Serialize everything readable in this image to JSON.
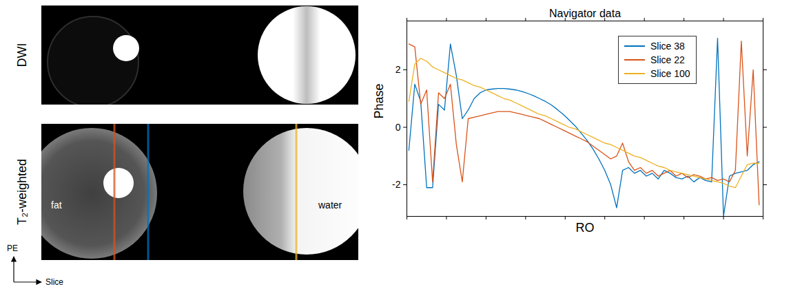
{
  "chart_data": {
    "type": "line",
    "title": "Navigator data",
    "x_label": "RO",
    "y_label": "Phase",
    "x": [
      1,
      4,
      7,
      10,
      13,
      16,
      19,
      22,
      25,
      28,
      31,
      34,
      37,
      40,
      43,
      46,
      49,
      52,
      55,
      58,
      61,
      64,
      67,
      70,
      73,
      76,
      79,
      82,
      85,
      88,
      91,
      94,
      97,
      100,
      103,
      106,
      109,
      112,
      115,
      118,
      121,
      124,
      127,
      130,
      133,
      136,
      139,
      142,
      145,
      148,
      151,
      154,
      157,
      160,
      163,
      166,
      169,
      172,
      175,
      178
    ],
    "series": [
      {
        "name": "Slice 38",
        "color": "#0072bd",
        "values": [
          -0.8,
          1.5,
          0.9,
          -2.1,
          -2.1,
          0.8,
          0.6,
          2.9,
          1.8,
          0.3,
          0.6,
          1.0,
          1.2,
          1.3,
          1.33,
          1.35,
          1.35,
          1.33,
          1.3,
          1.25,
          1.18,
          1.1,
          1.0,
          0.9,
          0.78,
          0.62,
          0.45,
          0.25,
          0.05,
          -0.2,
          -0.45,
          -0.75,
          -1.1,
          -1.5,
          -2.0,
          -2.8,
          -1.5,
          -1.4,
          -1.6,
          -1.5,
          -1.7,
          -1.6,
          -1.8,
          -1.5,
          -1.6,
          -1.75,
          -1.8,
          -1.7,
          -1.9,
          -1.75,
          -1.85,
          -1.9,
          3.1,
          -3.1,
          -1.7,
          -1.6,
          -1.55,
          -1.5,
          -1.3,
          -1.2
        ]
      },
      {
        "name": "Slice 22",
        "color": "#d95319",
        "values": [
          2.9,
          2.8,
          0.8,
          1.3,
          -1.9,
          1.2,
          1.0,
          1.5,
          -0.6,
          -1.9,
          0.3,
          0.35,
          0.4,
          0.45,
          0.5,
          0.55,
          0.55,
          0.55,
          0.5,
          0.45,
          0.4,
          0.35,
          0.3,
          0.2,
          0.1,
          0.0,
          -0.1,
          -0.2,
          -0.3,
          -0.4,
          -0.5,
          -0.65,
          -0.8,
          -0.95,
          -1.1,
          -1.0,
          -0.55,
          -1.2,
          -1.5,
          -1.4,
          -1.6,
          -1.5,
          -1.7,
          -1.6,
          -1.5,
          -1.7,
          -1.6,
          -1.75,
          -1.65,
          -1.7,
          -1.8,
          -1.75,
          -1.85,
          -1.8,
          -1.9,
          -1.5,
          3.0,
          -1.0,
          2.0,
          -2.7
        ]
      },
      {
        "name": "Slice 100",
        "color": "#edb120",
        "values": [
          0.9,
          2.2,
          2.4,
          2.3,
          2.1,
          2.0,
          1.9,
          1.8,
          1.7,
          1.65,
          1.55,
          1.45,
          1.4,
          1.3,
          1.2,
          1.1,
          1.0,
          0.95,
          0.85,
          0.75,
          0.65,
          0.55,
          0.45,
          0.4,
          0.3,
          0.2,
          0.1,
          0.0,
          -0.05,
          -0.15,
          -0.25,
          -0.35,
          -0.45,
          -0.55,
          -0.6,
          -0.7,
          -0.8,
          -0.9,
          -1.0,
          -1.05,
          -1.15,
          -1.25,
          -1.35,
          -1.4,
          -1.5,
          -1.55,
          -1.6,
          -1.65,
          -1.7,
          -1.75,
          -1.8,
          -1.85,
          -1.9,
          -1.95,
          -2.05,
          -2.1,
          -1.7,
          -1.3,
          -1.25,
          -1.25
        ]
      }
    ],
    "xlim": [
      0,
      180
    ],
    "xticks": [
      0,
      20,
      40,
      60,
      80,
      100,
      120,
      140,
      160,
      180
    ],
    "ylim": [
      -3.1,
      3.7
    ],
    "yticks": [
      -2,
      0,
      2
    ],
    "tick_labels": "y",
    "legend": "top-right",
    "grid": false
  },
  "images": {
    "panels": [
      {
        "label": "DWI"
      },
      {
        "label": "T₂-weighted",
        "annotations": [
          "fat",
          "water"
        ]
      }
    ],
    "axes": {
      "vertical": "PE",
      "horizontal": "Slice"
    }
  }
}
